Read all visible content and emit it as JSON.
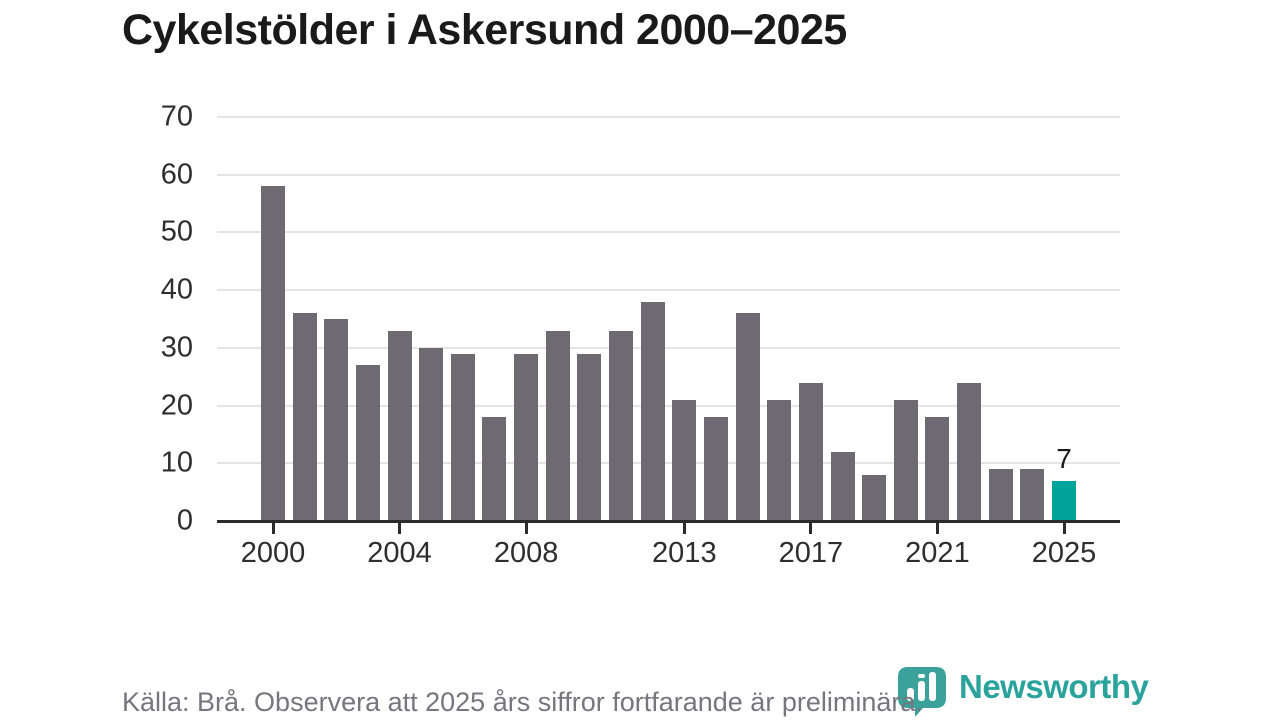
{
  "title": "Cykelstölder i Askersund 2000–2025",
  "footer": {
    "source_note": "Källa: Brå. Observera att 2025 års siffror fortfarande är preliminära."
  },
  "branding": {
    "wordmark": "Newsworthy",
    "icon": "newsworthy-chart-pin-icon",
    "teal": "#2aa39c"
  },
  "colors": {
    "bar": "#6d6a71",
    "highlight": "#00a49b",
    "gridline": "#e4e4e4",
    "axis": "#2b2b2b",
    "tick_label": "#2e2e2e",
    "title": "#1a1a1a",
    "footer_text": "#77757d"
  },
  "chart_data": {
    "type": "bar",
    "title": "Cykelstölder i Askersund 2000–2025",
    "x": [
      2000,
      2001,
      2002,
      2003,
      2004,
      2005,
      2006,
      2007,
      2008,
      2009,
      2010,
      2011,
      2012,
      2013,
      2014,
      2015,
      2016,
      2017,
      2018,
      2019,
      2020,
      2021,
      2022,
      2023,
      2024,
      2025
    ],
    "values": [
      58,
      36,
      35,
      27,
      33,
      30,
      29,
      18,
      29,
      33,
      29,
      33,
      38,
      21,
      18,
      36,
      21,
      24,
      12,
      8,
      21,
      18,
      24,
      9,
      9,
      7
    ],
    "highlight_index": 25,
    "bar_label": {
      "index": 25,
      "text": "7"
    },
    "y_ticks": [
      0,
      10,
      20,
      30,
      40,
      50,
      60,
      70
    ],
    "x_tick_years": [
      2000,
      2004,
      2008,
      2013,
      2017,
      2021,
      2025
    ],
    "ylim": [
      0,
      70
    ],
    "xlabel": "",
    "ylabel": "",
    "grid": "horizontal",
    "legend": "none"
  }
}
